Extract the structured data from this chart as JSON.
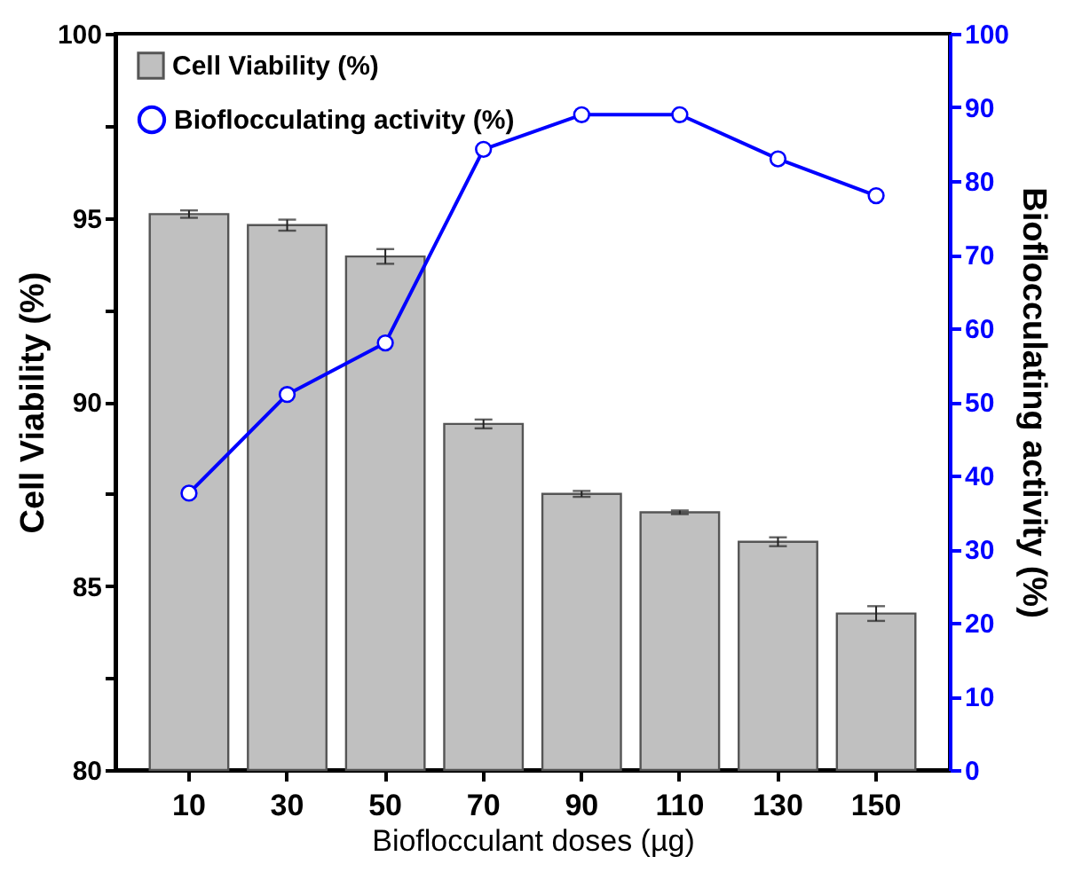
{
  "chart_data": {
    "type": "bar",
    "xlabel": "Bioflocculant doses (µg)",
    "ylabel": "Cell Viability (%)",
    "y2label": "Bioflocculating activity (%)",
    "categories": [
      "10",
      "30",
      "50",
      "70",
      "90",
      "110",
      "130",
      "150"
    ],
    "series": [
      {
        "name": "Cell Viability (%)",
        "color": "#c0c0c0",
        "values": [
          95.1,
          94.8,
          93.95,
          89.4,
          87.5,
          87.0,
          86.2,
          84.25
        ],
        "errors": [
          0.1,
          0.15,
          0.2,
          0.12,
          0.08,
          0.05,
          0.12,
          0.2
        ]
      },
      {
        "name": "Bioflocculating activity (%)",
        "type": "line",
        "axis": "y2",
        "color": "#0000ff",
        "marker": "circle",
        "line_style": "solid",
        "values": [
          37.6,
          51,
          58,
          84.3,
          89,
          89,
          83,
          78
        ]
      }
    ],
    "ylim": [
      80,
      100
    ],
    "yticks": [
      80,
      {
        "value": 82.5,
        "label": null
      },
      85,
      {
        "value": 87.5,
        "label": null
      },
      90,
      {
        "value": 92.5,
        "label": null
      },
      95,
      {
        "value": 97.5,
        "label": null
      },
      100
    ],
    "y2lim": [
      0,
      100
    ],
    "y2ticks": [
      0,
      10,
      20,
      30,
      40,
      50,
      60,
      70,
      80,
      90,
      100
    ],
    "grid": false,
    "legend": "top left"
  }
}
